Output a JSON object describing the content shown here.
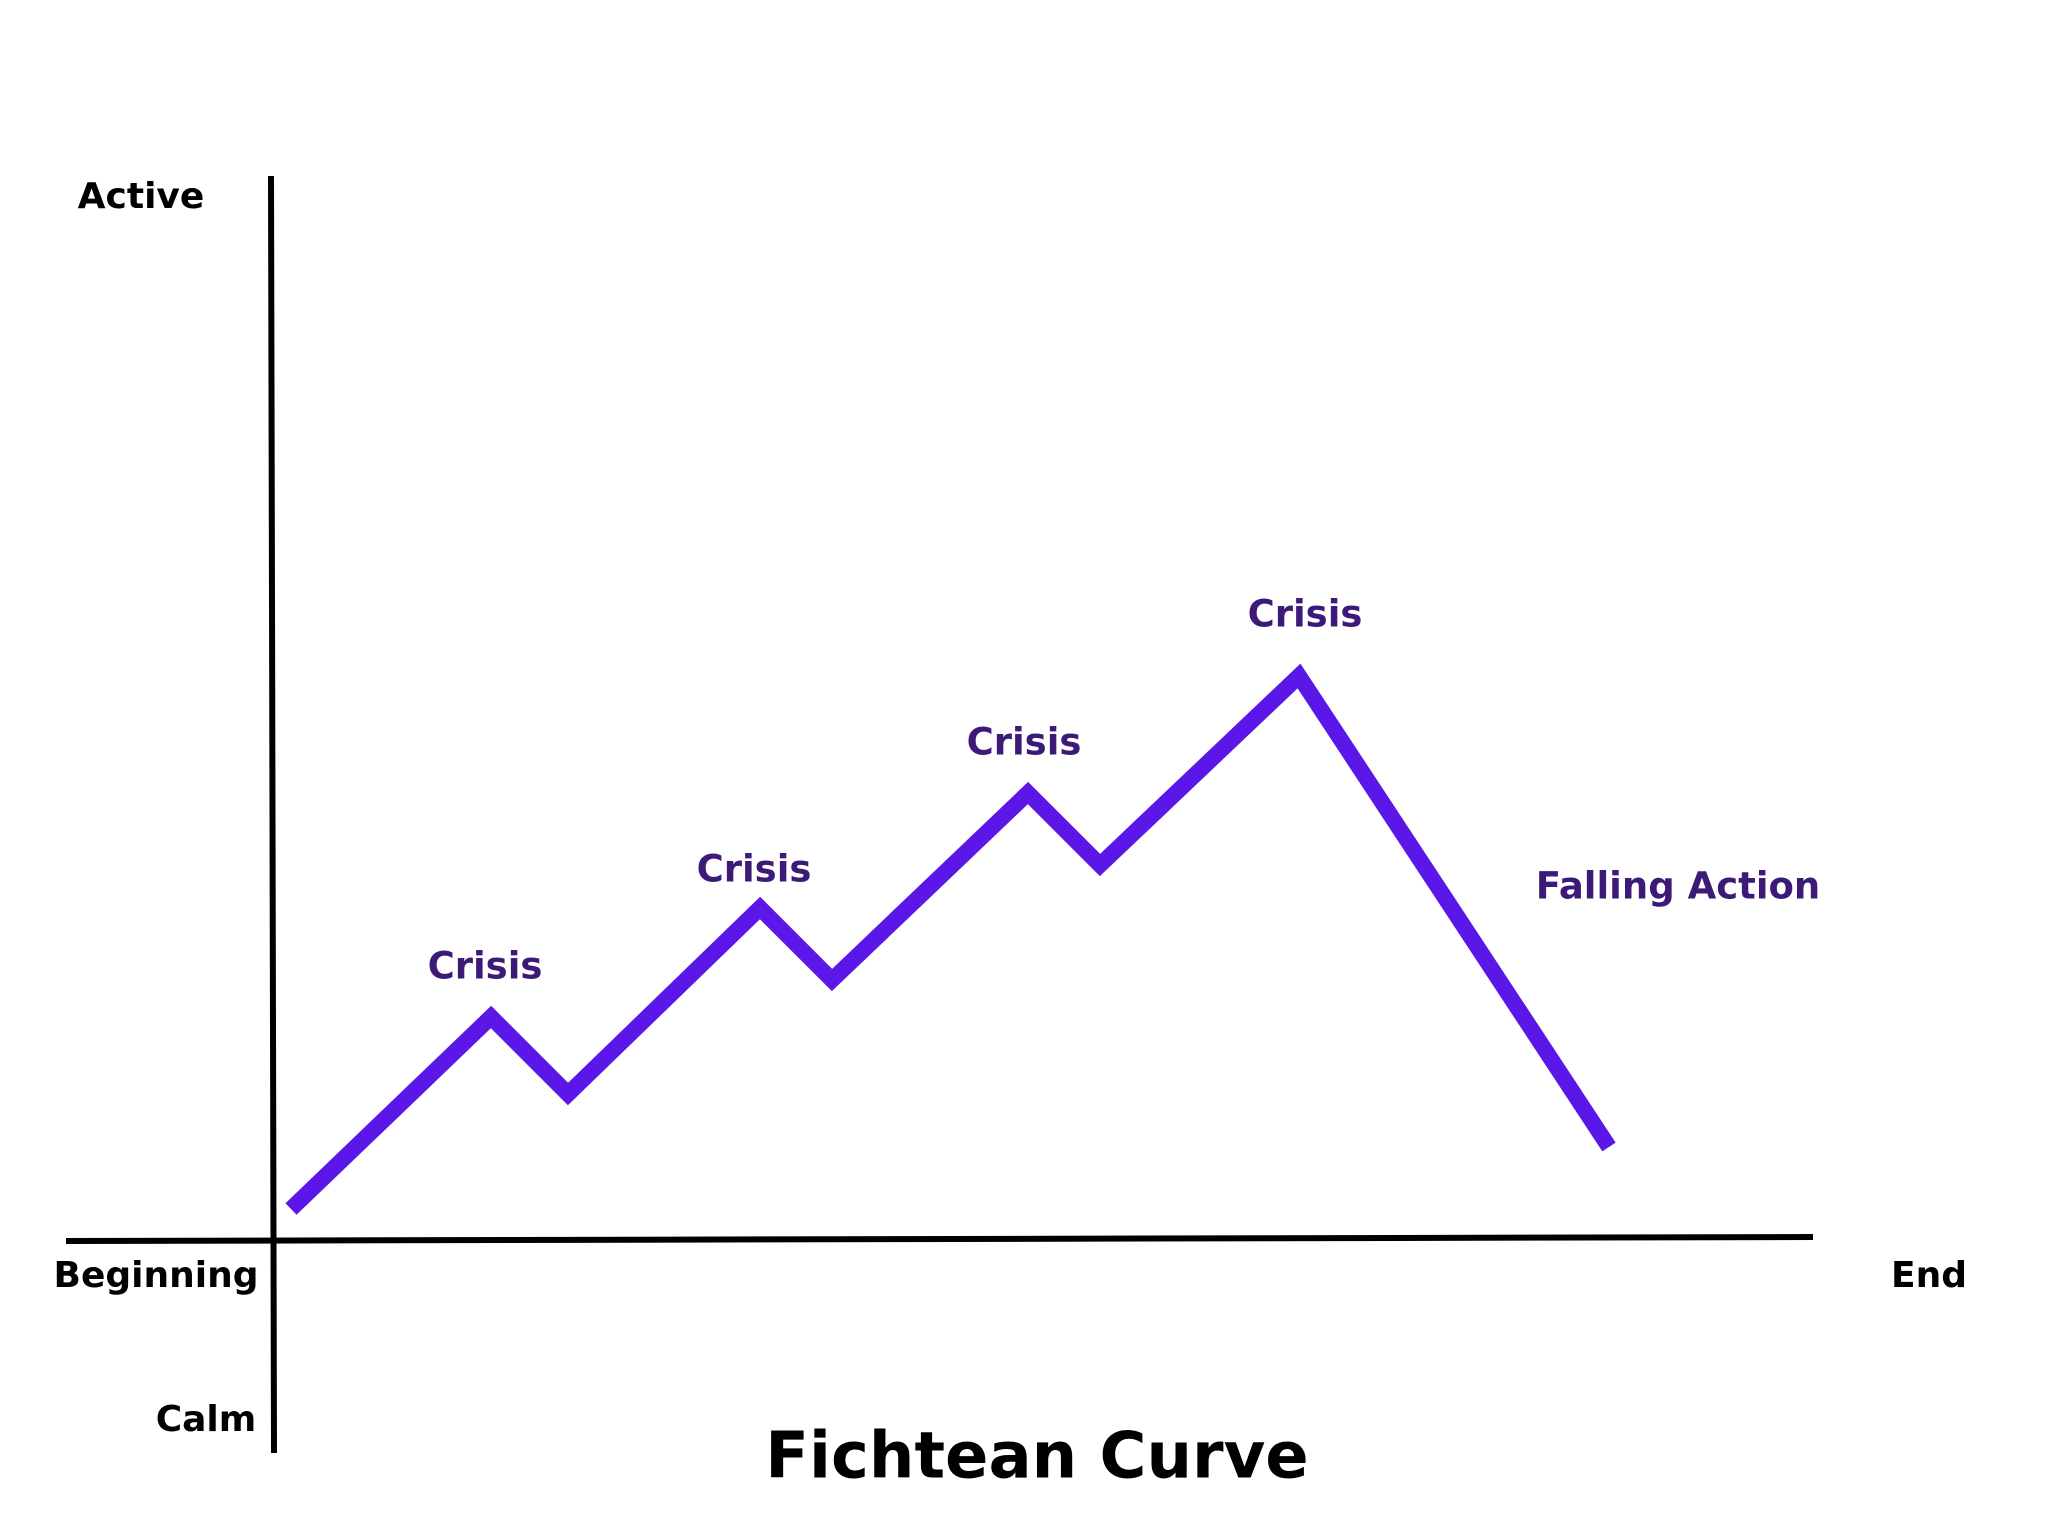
{
  "title": "Fichtean Curve",
  "axes": {
    "y_top": "Active",
    "y_bottom": "Calm",
    "x_start": "Beginning",
    "x_end": "End"
  },
  "annotations": [
    "Crisis",
    "Crisis",
    "Crisis",
    "Crisis",
    "Falling Action"
  ]
}
